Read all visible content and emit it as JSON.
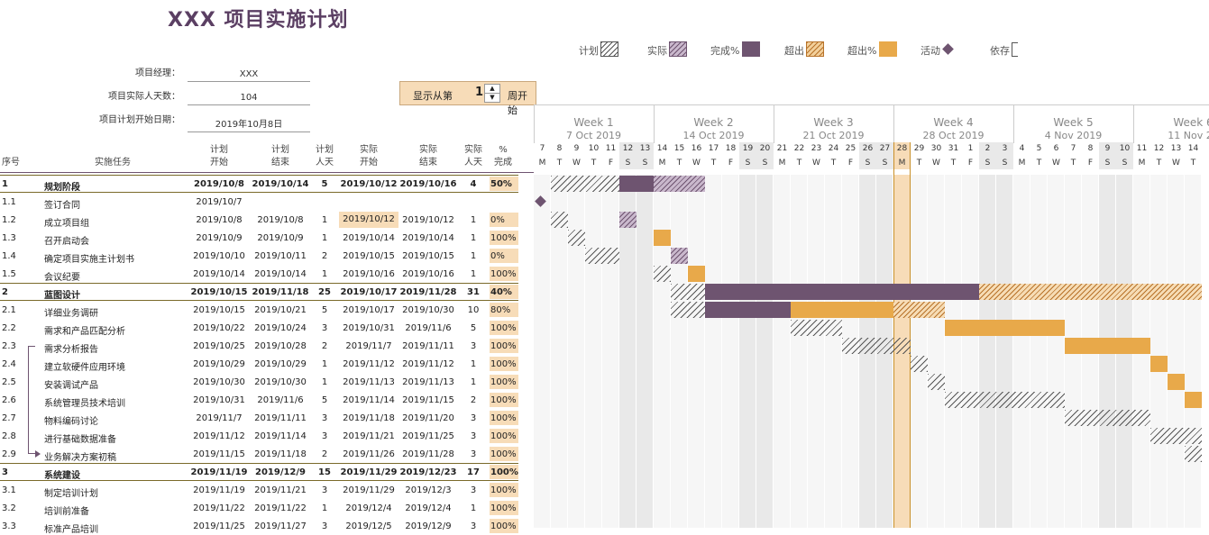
{
  "title": "XXX 项目实施计划",
  "legend": [
    {
      "label": "计划",
      "kind": "hatch-plan"
    },
    {
      "label": "实际",
      "kind": "hatch-actual"
    },
    {
      "label": "完成%",
      "kind": "solid-purple"
    },
    {
      "label": "超出",
      "kind": "hatch-over"
    },
    {
      "label": "超出%",
      "kind": "solid-orange"
    },
    {
      "label": "活动",
      "kind": "diamond"
    },
    {
      "label": "依存",
      "kind": "bracket"
    }
  ],
  "info": [
    {
      "label": "项目经理：",
      "value": "XXX"
    },
    {
      "label": "项目实际人天数：",
      "value": "104"
    },
    {
      "label": "项目计划开始日期：",
      "value": "2019年10月8日"
    }
  ],
  "control": {
    "label": "显示从第",
    "value": "1",
    "suffix": "周开始"
  },
  "columns": {
    "id": "序号",
    "task": "实施任务",
    "plan_start": "计划\n开始",
    "plan_end": "计划\n结束",
    "plan_days": "计划\n人天",
    "act_start": "实际\n开始",
    "act_end": "实际\n结束",
    "act_days": "实际\n人天",
    "pct": "%\n完成"
  },
  "weeks": [
    {
      "name": "Week 1",
      "date": "7 Oct 2019"
    },
    {
      "name": "Week 2",
      "date": "14 Oct 2019"
    },
    {
      "name": "Week 3",
      "date": "21 Oct 2019"
    },
    {
      "name": "Week 4",
      "date": "28 Oct 2019"
    },
    {
      "name": "Week 5",
      "date": "4 Nov 2019"
    },
    {
      "name": "Week 6",
      "date": "11 Nov 20"
    }
  ],
  "days": [
    "7",
    "8",
    "9",
    "10",
    "11",
    "12",
    "13",
    "14",
    "15",
    "16",
    "17",
    "18",
    "19",
    "20",
    "21",
    "22",
    "23",
    "24",
    "25",
    "26",
    "27",
    "28",
    "29",
    "30",
    "31",
    "1",
    "2",
    "3",
    "4",
    "5",
    "6",
    "7",
    "8",
    "9",
    "10",
    "11",
    "12",
    "13",
    "14"
  ],
  "weekdays": [
    "M",
    "T",
    "W",
    "T",
    "F",
    "S",
    "S"
  ],
  "today_col": 21,
  "colors": {
    "purple": "#6e5470",
    "orange": "#e8a94a",
    "today": "#f7dcb8",
    "weekend": "#e9e9e9",
    "weekday": "#f6f6f6",
    "title": "#5b3f63"
  },
  "tasks": [
    {
      "id": "1",
      "name": "规划阶段",
      "ps": "2019/10/8",
      "pe": "2019/10/14",
      "pd": "5",
      "as": "2019/10/12",
      "ae": "2019/10/16",
      "ad": "4",
      "pct": "50%",
      "bold": true,
      "plan": [
        1,
        8
      ],
      "actual": [
        5,
        10
      ],
      "done": [
        5,
        7
      ]
    },
    {
      "id": "1.1",
      "name": "签订合同",
      "ps": "2019/10/7",
      "pe": "",
      "pd": "",
      "as": "",
      "ae": "",
      "ad": "",
      "pct": "",
      "milestone": 0
    },
    {
      "id": "1.2",
      "name": "成立项目组",
      "ps": "2019/10/8",
      "pe": "2019/10/8",
      "pd": "1",
      "as": "2019/10/12",
      "ae": "2019/10/12",
      "ad": "1",
      "pct": "0%",
      "hl": true,
      "plan": [
        1,
        2
      ],
      "actual": [
        5,
        6
      ]
    },
    {
      "id": "1.3",
      "name": "召开启动会",
      "ps": "2019/10/9",
      "pe": "2019/10/9",
      "pd": "1",
      "as": "2019/10/14",
      "ae": "2019/10/14",
      "ad": "1",
      "pct": "100%",
      "plan": [
        2,
        3
      ],
      "over": [
        7,
        8
      ]
    },
    {
      "id": "1.4",
      "name": "确定项目实施主计划书",
      "ps": "2019/10/10",
      "pe": "2019/10/11",
      "pd": "2",
      "as": "2019/10/15",
      "ae": "2019/10/15",
      "ad": "1",
      "pct": "0%",
      "plan": [
        3,
        5
      ],
      "actual": [
        8,
        9
      ]
    },
    {
      "id": "1.5",
      "name": "会议纪要",
      "ps": "2019/10/14",
      "pe": "2019/10/14",
      "pd": "1",
      "as": "2019/10/16",
      "ae": "2019/10/16",
      "ad": "1",
      "pct": "100%",
      "plan": [
        7,
        8
      ],
      "over": [
        9,
        10
      ]
    },
    {
      "id": "2",
      "name": "蓝图设计",
      "ps": "2019/10/15",
      "pe": "2019/11/18",
      "pd": "25",
      "as": "2019/10/17",
      "ae": "2019/11/28",
      "ad": "31",
      "pct": "40%",
      "bold": true,
      "plan": [
        8,
        21
      ],
      "done": [
        10,
        26
      ],
      "overh": [
        26,
        39
      ]
    },
    {
      "id": "2.1",
      "name": "详细业务调研",
      "ps": "2019/10/15",
      "pe": "2019/10/21",
      "pd": "5",
      "as": "2019/10/17",
      "ae": "2019/10/30",
      "ad": "10",
      "pct": "80%",
      "plan": [
        8,
        10
      ],
      "done": [
        10,
        15
      ],
      "over": [
        15,
        21
      ],
      "overh": [
        21,
        24
      ]
    },
    {
      "id": "2.2",
      "name": "需求和产品匹配分析",
      "ps": "2019/10/22",
      "pe": "2019/10/24",
      "pd": "3",
      "as": "2019/10/31",
      "ae": "2019/11/6",
      "ad": "5",
      "pct": "100%",
      "plan": [
        15,
        18
      ],
      "over": [
        24,
        31
      ]
    },
    {
      "id": "2.3",
      "name": "需求分析报告",
      "ps": "2019/10/25",
      "pe": "2019/10/28",
      "pd": "2",
      "as": "2019/11/7",
      "ae": "2019/11/11",
      "ad": "3",
      "pct": "100%",
      "plan": [
        18,
        22
      ],
      "over": [
        31,
        36
      ]
    },
    {
      "id": "2.4",
      "name": "建立软硬件应用环境",
      "ps": "2019/10/29",
      "pe": "2019/10/29",
      "pd": "1",
      "as": "2019/11/12",
      "ae": "2019/11/12",
      "ad": "1",
      "pct": "100%",
      "plan": [
        22,
        23
      ],
      "over": [
        36,
        37
      ]
    },
    {
      "id": "2.5",
      "name": "安装调试产品",
      "ps": "2019/10/30",
      "pe": "2019/10/30",
      "pd": "1",
      "as": "2019/11/13",
      "ae": "2019/11/13",
      "ad": "1",
      "pct": "100%",
      "plan": [
        23,
        24
      ],
      "over": [
        37,
        38
      ]
    },
    {
      "id": "2.6",
      "name": "系统管理员技术培训",
      "ps": "2019/10/31",
      "pe": "2019/11/6",
      "pd": "5",
      "as": "2019/11/14",
      "ae": "2019/11/15",
      "ad": "2",
      "pct": "100%",
      "plan": [
        24,
        31
      ],
      "over": [
        38,
        39
      ]
    },
    {
      "id": "2.7",
      "name": "物料编码讨论",
      "ps": "2019/11/7",
      "pe": "2019/11/11",
      "pd": "3",
      "as": "2019/11/18",
      "ae": "2019/11/20",
      "ad": "3",
      "pct": "100%",
      "plan": [
        31,
        36
      ]
    },
    {
      "id": "2.8",
      "name": "进行基础数据准备",
      "ps": "2019/11/12",
      "pe": "2019/11/14",
      "pd": "3",
      "as": "2019/11/21",
      "ae": "2019/11/25",
      "ad": "3",
      "pct": "100%",
      "plan": [
        36,
        39
      ]
    },
    {
      "id": "2.9",
      "name": "业务解决方案初稿",
      "ps": "2019/11/15",
      "pe": "2019/11/18",
      "pd": "2",
      "as": "2019/11/26",
      "ae": "2019/11/28",
      "ad": "3",
      "pct": "100%",
      "plan": [
        38,
        39
      ]
    },
    {
      "id": "3",
      "name": "系统建设",
      "ps": "2019/11/19",
      "pe": "2019/12/9",
      "pd": "15",
      "as": "2019/11/29",
      "ae": "2019/12/23",
      "ad": "17",
      "pct": "100%",
      "bold": true
    },
    {
      "id": "3.1",
      "name": "制定培训计划",
      "ps": "2019/11/19",
      "pe": "2019/11/21",
      "pd": "3",
      "as": "2019/11/29",
      "ae": "2019/12/3",
      "ad": "3",
      "pct": "100%"
    },
    {
      "id": "3.2",
      "name": "培训前准备",
      "ps": "2019/11/22",
      "pe": "2019/11/22",
      "pd": "1",
      "as": "2019/12/4",
      "ae": "2019/12/4",
      "ad": "1",
      "pct": "100%"
    },
    {
      "id": "3.3",
      "name": "标准产品培训",
      "ps": "2019/11/25",
      "pe": "2019/11/27",
      "pd": "3",
      "as": "2019/12/5",
      "ae": "2019/12/9",
      "ad": "3",
      "pct": "100%"
    }
  ]
}
